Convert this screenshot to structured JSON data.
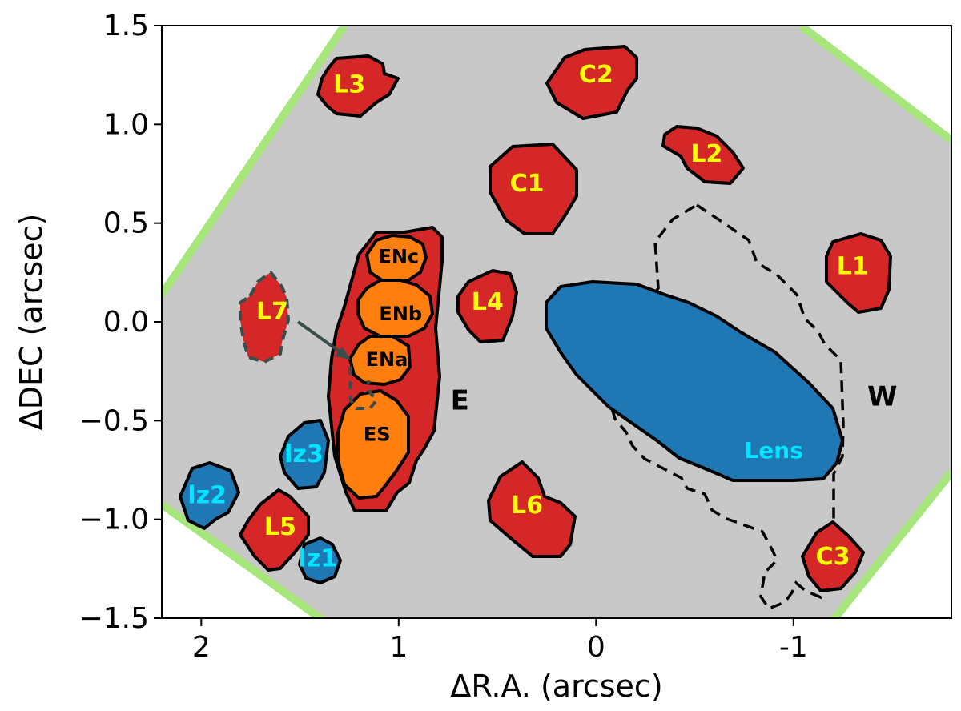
{
  "chart_data": {
    "type": "map",
    "xlabel": "ΔR.A. (arcsec)",
    "ylabel": "ΔDEC (arcsec)",
    "xlim": [
      2.2,
      -1.8
    ],
    "ylim": [
      -1.5,
      1.5
    ],
    "x_ticks": [
      {
        "value": 2,
        "label": "2"
      },
      {
        "value": 1,
        "label": "1"
      },
      {
        "value": 0,
        "label": "0"
      },
      {
        "value": -1,
        "label": "-1"
      }
    ],
    "y_ticks": [
      {
        "value": 1.5,
        "label": "1.5"
      },
      {
        "value": 1.0,
        "label": "1.0"
      },
      {
        "value": 0.5,
        "label": "0.5"
      },
      {
        "value": 0.0,
        "label": "0.0"
      },
      {
        "value": -0.5,
        "label": "−0.5"
      },
      {
        "value": -1.0,
        "label": "−1.0"
      },
      {
        "value": -1.5,
        "label": "−1.5"
      }
    ],
    "colors": {
      "field": "#c8c8c8",
      "edge": "#a6e67a",
      "red": "#d62728",
      "orange": "#ff7f0e",
      "blue": "#1f77b4",
      "label_yellow": "#ffff00",
      "label_cyan": "#00e5ff",
      "outline": "#000000",
      "dashed_gray": "#3a4d4d"
    },
    "regions": [
      {
        "label": "L3",
        "x": 1.25,
        "y": 1.2,
        "fill": "red",
        "label_color": "label_yellow"
      },
      {
        "label": "C2",
        "x": 0.0,
        "y": 1.25,
        "fill": "red",
        "label_color": "label_yellow"
      },
      {
        "label": "L2",
        "x": -0.56,
        "y": 0.85,
        "fill": "red",
        "label_color": "label_yellow"
      },
      {
        "label": "C1",
        "x": 0.35,
        "y": 0.7,
        "fill": "red",
        "label_color": "label_yellow"
      },
      {
        "label": "L1",
        "x": -1.3,
        "y": 0.28,
        "fill": "red",
        "label_color": "label_yellow"
      },
      {
        "label": "L4",
        "x": 0.55,
        "y": 0.1,
        "fill": "red",
        "label_color": "label_yellow"
      },
      {
        "label": "L7",
        "x": 1.64,
        "y": 0.05,
        "fill": "red",
        "label_color": "label_yellow",
        "dashed": true
      },
      {
        "label": "ENc",
        "x": 1.0,
        "y": 0.33,
        "fill": "orange",
        "label_color": "outline"
      },
      {
        "label": "ENb",
        "x": 0.99,
        "y": 0.04,
        "fill": "orange",
        "label_color": "outline"
      },
      {
        "label": "ENa",
        "x": 1.06,
        "y": -0.19,
        "fill": "orange",
        "label_color": "outline"
      },
      {
        "label": "ES",
        "x": 1.11,
        "y": -0.57,
        "fill": "orange",
        "label_color": "outline"
      },
      {
        "label": "Lens",
        "x": -0.5,
        "y": -0.25,
        "fill": "blue",
        "label_color": "label_cyan",
        "label_x": -0.9,
        "label_y": -0.65
      },
      {
        "label": "lz3",
        "x": 1.48,
        "y": -0.67,
        "fill": "blue",
        "label_color": "label_cyan"
      },
      {
        "label": "lz2",
        "x": 1.97,
        "y": -0.88,
        "fill": "blue",
        "label_color": "label_cyan"
      },
      {
        "label": "lz1",
        "x": 1.41,
        "y": -1.2,
        "fill": "blue",
        "label_color": "label_cyan"
      },
      {
        "label": "L5",
        "x": 1.6,
        "y": -1.04,
        "fill": "red",
        "label_color": "label_yellow"
      },
      {
        "label": "L6",
        "x": 0.35,
        "y": -0.93,
        "fill": "red",
        "label_color": "label_yellow"
      },
      {
        "label": "C3",
        "x": -1.2,
        "y": -1.19,
        "fill": "red",
        "label_color": "label_yellow"
      }
    ],
    "annotations": [
      {
        "text": "E",
        "x": 0.69,
        "y": -0.4
      },
      {
        "text": "W",
        "x": -1.45,
        "y": -0.38
      }
    ]
  }
}
